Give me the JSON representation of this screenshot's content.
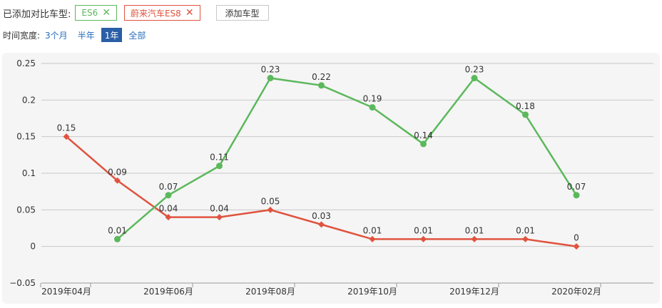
{
  "filter": {
    "added_label": "已添加对比车型:",
    "tags": [
      {
        "label": "ES6",
        "color": "#5cb85c"
      },
      {
        "label": "蔚来汽车ES8",
        "color": "#e0533f"
      }
    ],
    "remove_icon": "close-x-icon",
    "add_button": "添加车型"
  },
  "time_range": {
    "label": "时间宽度:",
    "options": [
      "3个月",
      "半年",
      "1年",
      "全部"
    ],
    "selected": "1年"
  },
  "chart_data": {
    "type": "line",
    "y_ticks": [
      "0.25",
      "0.2",
      "0.15",
      "0.1",
      "0.05",
      "0",
      "−0.05"
    ],
    "ylim": [
      -0.05,
      0.25
    ],
    "x_ticks": [
      "2019年04月",
      "2019年06月",
      "2019年08月",
      "2019年10月",
      "2019年12月",
      "2020年02月"
    ],
    "x_months": [
      "2019-04",
      "2019-05",
      "2019-06",
      "2019-07",
      "2019-08",
      "2019-09",
      "2019-10",
      "2019-11",
      "2019-12",
      "2020-01",
      "2020-02"
    ],
    "grid": "horizontal",
    "series": [
      {
        "color": "#e0533f",
        "marker": "diamond",
        "values": [
          0.15,
          0.09,
          0.04,
          0.04,
          0.05,
          0.03,
          0.01,
          0.01,
          0.01,
          0.01,
          0
        ],
        "labels": [
          "0.15",
          "0.09",
          "0.04",
          "0.04",
          "0.05",
          "0.03",
          "0.01",
          "0.01",
          "0.01",
          "0.01",
          "0"
        ]
      },
      {
        "color": "#5cb85c",
        "marker": "circle",
        "values": [
          null,
          0.01,
          0.07,
          0.11,
          0.23,
          0.22,
          0.19,
          0.14,
          0.23,
          0.18,
          0.07
        ],
        "labels": [
          null,
          "0.01",
          "0.07",
          "0.11",
          "0.23",
          "0.22",
          "0.19",
          "0.14",
          "0.23",
          "0.18",
          "0.07"
        ]
      }
    ]
  }
}
